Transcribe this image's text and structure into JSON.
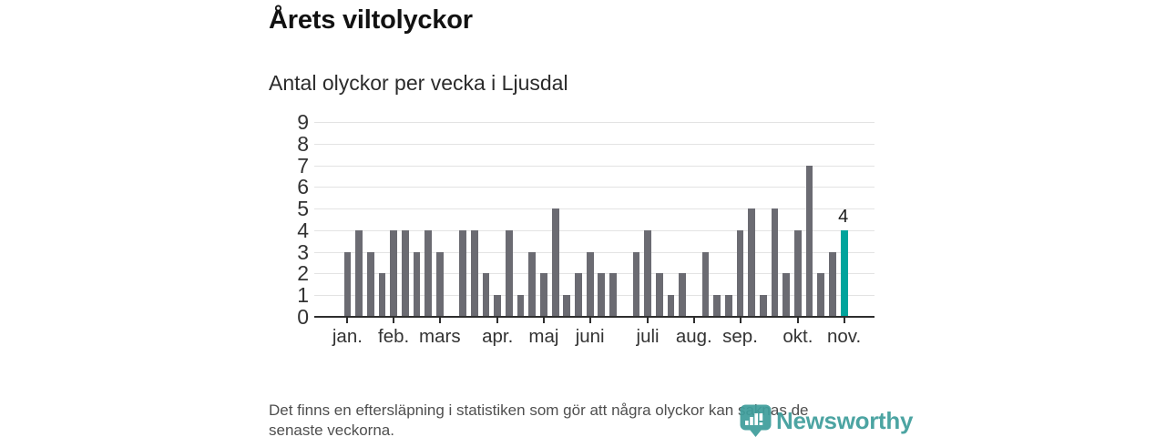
{
  "header": {
    "title": "Årets viltolyckor",
    "subtitle": "Antal olyckor per vecka i Ljusdal"
  },
  "footer": {
    "text": "Det finns en eftersläpning i statistiken som gör att några olyckor kan saknas de senaste veckorna.",
    "lines": [
      "Det finns en eftersläpning i statistiken som gör att några olyckor kan saknas de",
      "senaste veckorna."
    ]
  },
  "logo": {
    "name": "Newsworthy",
    "color": "#3f9e9c"
  },
  "chart_data": {
    "type": "bar",
    "title": "Årets viltolyckor",
    "subtitle": "Antal olyckor per vecka i Ljusdal",
    "xlabel": "",
    "ylabel": "",
    "x_unit": "week-of-year",
    "weeks": [
      1,
      2,
      3,
      4,
      5,
      6,
      7,
      8,
      9,
      10,
      11,
      12,
      13,
      14,
      15,
      16,
      17,
      18,
      19,
      20,
      21,
      22,
      23,
      24,
      25,
      26,
      27,
      28,
      29,
      30,
      31,
      32,
      33,
      34,
      35,
      36,
      37,
      38,
      39,
      40,
      41,
      42,
      43,
      44
    ],
    "values": [
      3,
      4,
      3,
      2,
      4,
      4,
      3,
      4,
      3,
      0,
      4,
      4,
      2,
      1,
      4,
      1,
      3,
      2,
      5,
      1,
      2,
      3,
      2,
      2,
      0,
      3,
      4,
      2,
      1,
      2,
      0,
      3,
      1,
      1,
      4,
      5,
      1,
      5,
      2,
      4,
      7,
      2,
      3,
      4
    ],
    "ylim": [
      0,
      9
    ],
    "y_ticks": [
      0,
      1,
      2,
      3,
      4,
      5,
      6,
      7,
      8,
      9
    ],
    "month_ticks": [
      {
        "label": "jan.",
        "week": 1
      },
      {
        "label": "feb.",
        "week": 5
      },
      {
        "label": "mars",
        "week": 9
      },
      {
        "label": "apr.",
        "week": 14
      },
      {
        "label": "maj",
        "week": 18
      },
      {
        "label": "juni",
        "week": 22
      },
      {
        "label": "juli",
        "week": 27
      },
      {
        "label": "aug.",
        "week": 31
      },
      {
        "label": "sep.",
        "week": 35
      },
      {
        "label": "okt.",
        "week": 40
      },
      {
        "label": "nov.",
        "week": 44
      }
    ],
    "bar_color": "#6b6b72",
    "highlight": {
      "week": 44,
      "value": 4,
      "label": "4",
      "color": "#00a49c"
    },
    "grid": "horizontal",
    "legend": null
  }
}
